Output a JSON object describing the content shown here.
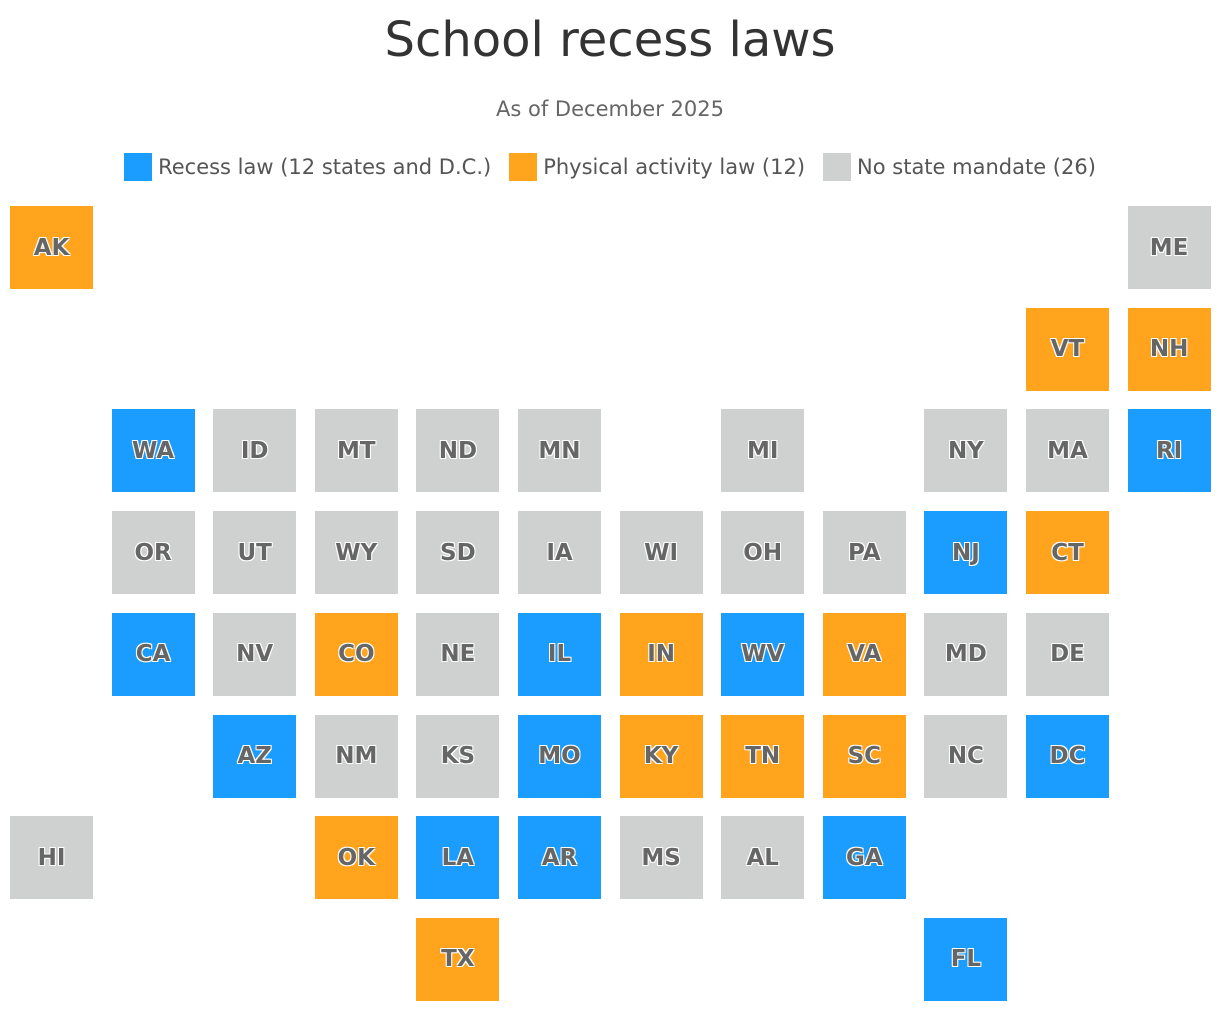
{
  "title": "School recess laws",
  "subtitle": "As of December 2025",
  "groups": [
    {
      "label": "Recess law (12 states and D.C.)",
      "color": "#1a9dff",
      "states": [
        "WA",
        "RI",
        "NJ",
        "CA",
        "IL",
        "WV",
        "AZ",
        "MO",
        "DC",
        "LA",
        "AR",
        "GA",
        "FL"
      ]
    },
    {
      "label": "Physical activity law (12)",
      "color": "#ffa41c",
      "states": [
        "AK",
        "VT",
        "NH",
        "CT",
        "CO",
        "IN",
        "VA",
        "KY",
        "TN",
        "SC",
        "OK",
        "TX"
      ]
    },
    {
      "label": "No state mandate (26)",
      "color": "#cfd0d0",
      "states": [
        "ME",
        "ID",
        "MT",
        "ND",
        "MN",
        "MI",
        "NY",
        "MA",
        "OR",
        "UT",
        "WY",
        "SD",
        "IA",
        "WI",
        "OH",
        "PA",
        "MD",
        "DE",
        "NE",
        "NV",
        "NM",
        "KS",
        "NC",
        "HI",
        "MS",
        "AL"
      ]
    }
  ]
}
